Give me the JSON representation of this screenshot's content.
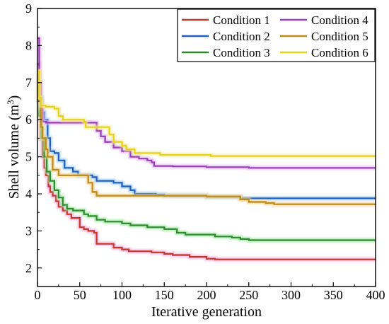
{
  "chart_data": {
    "type": "line",
    "xlabel": "Iterative generation",
    "ylabel": {
      "prefix": "Shell volume (m",
      "superscript": "3",
      "suffix": ")"
    },
    "xlim": [
      0,
      400
    ],
    "ylim": [
      1.5,
      9
    ],
    "xticks": [
      0,
      50,
      100,
      150,
      200,
      250,
      300,
      350,
      400
    ],
    "yticks": [
      2,
      3,
      4,
      5,
      6,
      7,
      8,
      9
    ],
    "grid": false,
    "legend_position": "top-right",
    "series": [
      {
        "name": "Condition 1",
        "color": "#c0392b",
        "glow": "#f6a8d6",
        "points": [
          [
            0,
            7.5
          ],
          [
            2,
            6.5
          ],
          [
            4,
            5.5
          ],
          [
            6,
            5.0
          ],
          [
            8,
            4.7
          ],
          [
            10,
            4.5
          ],
          [
            13,
            4.2
          ],
          [
            15,
            4.05
          ],
          [
            18,
            3.95
          ],
          [
            22,
            3.8
          ],
          [
            25,
            3.65
          ],
          [
            30,
            3.55
          ],
          [
            35,
            3.45
          ],
          [
            40,
            3.35
          ],
          [
            50,
            3.1
          ],
          [
            55,
            3.05
          ],
          [
            60,
            3.0
          ],
          [
            67,
            2.95
          ],
          [
            70,
            2.65
          ],
          [
            90,
            2.55
          ],
          [
            100,
            2.5
          ],
          [
            108,
            2.45
          ],
          [
            135,
            2.42
          ],
          [
            150,
            2.38
          ],
          [
            160,
            2.35
          ],
          [
            180,
            2.3
          ],
          [
            200,
            2.25
          ],
          [
            210,
            2.23
          ],
          [
            400,
            2.23
          ]
        ]
      },
      {
        "name": "Condition 2",
        "color": "#1f5fbf",
        "glow": "#9ccaf5",
        "points": [
          [
            0,
            7.2
          ],
          [
            2,
            6.6
          ],
          [
            5,
            6.2
          ],
          [
            8,
            6.0
          ],
          [
            12,
            5.5
          ],
          [
            15,
            5.15
          ],
          [
            20,
            5.1
          ],
          [
            25,
            4.9
          ],
          [
            32,
            4.7
          ],
          [
            42,
            4.6
          ],
          [
            48,
            4.5
          ],
          [
            65,
            4.45
          ],
          [
            70,
            4.35
          ],
          [
            90,
            4.3
          ],
          [
            100,
            4.2
          ],
          [
            110,
            4.1
          ],
          [
            115,
            4.0
          ],
          [
            140,
            3.98
          ],
          [
            150,
            3.95
          ],
          [
            200,
            3.92
          ],
          [
            240,
            3.88
          ],
          [
            400,
            3.88
          ]
        ]
      },
      {
        "name": "Condition 3",
        "color": "#2e8b2e",
        "glow": "#9ee69e",
        "points": [
          [
            0,
            7.0
          ],
          [
            2,
            6.1
          ],
          [
            5,
            5.5
          ],
          [
            8,
            5.0
          ],
          [
            11,
            4.6
          ],
          [
            15,
            4.35
          ],
          [
            20,
            4.1
          ],
          [
            25,
            3.9
          ],
          [
            30,
            3.7
          ],
          [
            35,
            3.6
          ],
          [
            42,
            3.55
          ],
          [
            55,
            3.45
          ],
          [
            60,
            3.4
          ],
          [
            70,
            3.3
          ],
          [
            80,
            3.25
          ],
          [
            100,
            3.2
          ],
          [
            110,
            3.15
          ],
          [
            130,
            3.1
          ],
          [
            150,
            3.05
          ],
          [
            165,
            2.95
          ],
          [
            175,
            2.9
          ],
          [
            210,
            2.85
          ],
          [
            230,
            2.82
          ],
          [
            240,
            2.78
          ],
          [
            250,
            2.75
          ],
          [
            400,
            2.75
          ]
        ]
      },
      {
        "name": "Condition 4",
        "color": "#9b3fb5",
        "glow": "#e0b4ef",
        "points": [
          [
            0,
            8.2
          ],
          [
            2,
            7.0
          ],
          [
            4,
            6.3
          ],
          [
            6,
            5.95
          ],
          [
            10,
            5.92
          ],
          [
            67,
            5.92
          ],
          [
            70,
            5.7
          ],
          [
            75,
            5.55
          ],
          [
            80,
            5.4
          ],
          [
            90,
            5.25
          ],
          [
            100,
            5.15
          ],
          [
            110,
            5.0
          ],
          [
            120,
            4.95
          ],
          [
            130,
            4.9
          ],
          [
            135,
            4.85
          ],
          [
            138,
            4.75
          ],
          [
            160,
            4.74
          ],
          [
            200,
            4.72
          ],
          [
            250,
            4.7
          ],
          [
            300,
            4.7
          ],
          [
            400,
            4.7
          ]
        ]
      },
      {
        "name": "Condition 5",
        "color": "#c08a1a",
        "glow": "#f2d28c",
        "points": [
          [
            0,
            7.3
          ],
          [
            2,
            6.5
          ],
          [
            4,
            5.8
          ],
          [
            6,
            5.5
          ],
          [
            10,
            5.2
          ],
          [
            12,
            5.0
          ],
          [
            18,
            4.65
          ],
          [
            25,
            4.5
          ],
          [
            55,
            4.5
          ],
          [
            60,
            4.3
          ],
          [
            65,
            4.05
          ],
          [
            70,
            3.95
          ],
          [
            110,
            3.95
          ],
          [
            200,
            3.93
          ],
          [
            240,
            3.85
          ],
          [
            250,
            3.78
          ],
          [
            270,
            3.75
          ],
          [
            280,
            3.72
          ],
          [
            400,
            3.72
          ]
        ]
      },
      {
        "name": "Condition 6",
        "color": "#e6d21e",
        "glow": "#f5ee9a",
        "points": [
          [
            0,
            7.3
          ],
          [
            2,
            6.6
          ],
          [
            4,
            6.38
          ],
          [
            10,
            6.35
          ],
          [
            20,
            6.3
          ],
          [
            25,
            6.1
          ],
          [
            30,
            6.0
          ],
          [
            55,
            5.95
          ],
          [
            57,
            5.8
          ],
          [
            85,
            5.6
          ],
          [
            90,
            5.4
          ],
          [
            100,
            5.3
          ],
          [
            105,
            5.2
          ],
          [
            115,
            5.1
          ],
          [
            140,
            5.1
          ],
          [
            145,
            5.05
          ],
          [
            200,
            5.05
          ],
          [
            205,
            5.02
          ],
          [
            400,
            5.02
          ]
        ]
      }
    ]
  }
}
